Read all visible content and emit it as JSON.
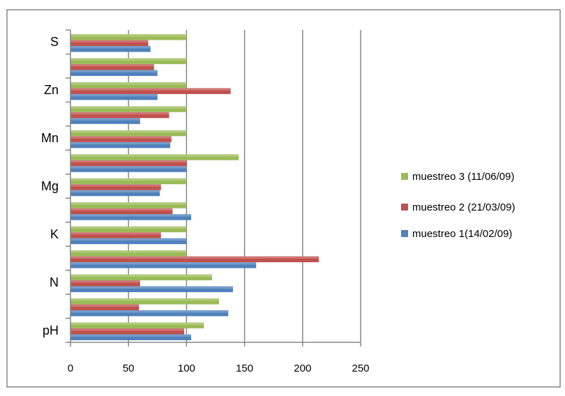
{
  "chart_data": {
    "type": "bar",
    "orientation": "horizontal",
    "categories": [
      "pH",
      "",
      "N",
      "",
      "K",
      "",
      "Mg",
      "",
      "Mn",
      "",
      "Zn",
      "",
      "S"
    ],
    "series": [
      {
        "name": "muestreo 1(14/02/09)",
        "color": "#4f81bd",
        "values": [
          104,
          136,
          140,
          160,
          100,
          104,
          77,
          100,
          86,
          60,
          75,
          75,
          69
        ]
      },
      {
        "name": "muestreo 2 (21/03/09)",
        "color": "#c0504d",
        "values": [
          98,
          59,
          60,
          214,
          78,
          88,
          78,
          100,
          87,
          85,
          138,
          72,
          67
        ]
      },
      {
        "name": "muestreo 3 (11/06/09)",
        "color": "#9bbb59",
        "values": [
          115,
          128,
          122,
          100,
          100,
          100,
          100,
          145,
          100,
          100,
          100,
          100,
          100
        ]
      }
    ],
    "x_ticks": [
      "0",
      "50",
      "100",
      "150",
      "200",
      "250"
    ],
    "xlim": [
      0,
      250
    ],
    "grid": "vertical",
    "legend_position": "right",
    "legend_order": [
      "muestreo 3 (11/06/09)",
      "muestreo 2 (21/03/09)",
      "muestreo 1(14/02/09)"
    ],
    "title": "",
    "xlabel": "",
    "ylabel": ""
  }
}
